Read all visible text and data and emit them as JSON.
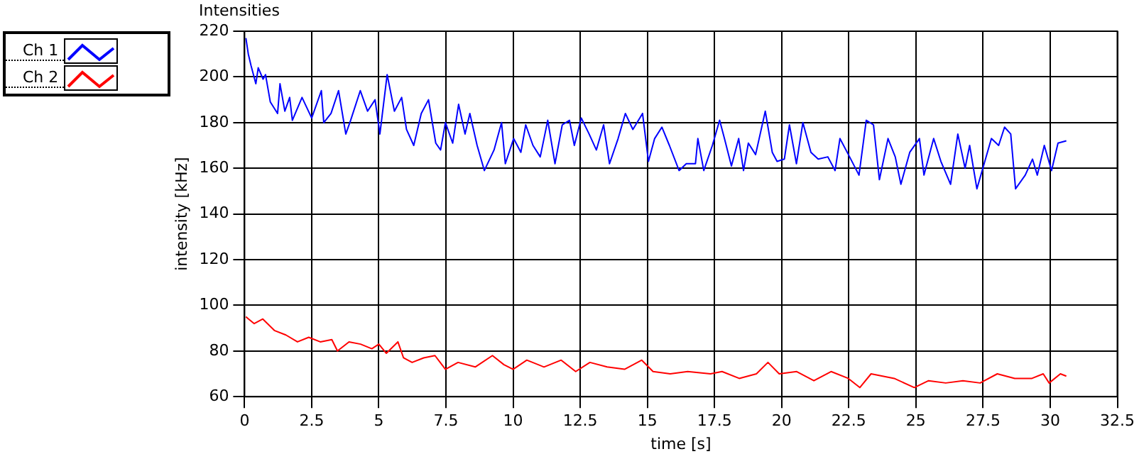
{
  "chart_data": {
    "type": "line",
    "title": "Intensities",
    "xlabel": "time [s]",
    "ylabel": "intensity [kHz]",
    "xlim": [
      0,
      32.5
    ],
    "xticks": [
      0,
      2.5,
      5,
      7.5,
      10,
      12.5,
      15,
      17.5,
      20,
      22.5,
      25,
      27.5,
      30,
      32.5
    ],
    "ylim": [
      60,
      220
    ],
    "yticks": [
      60,
      80,
      100,
      120,
      140,
      160,
      180,
      200,
      220
    ],
    "grid": true,
    "legend": "top left",
    "marker": "none",
    "line_style": "solid",
    "series": [
      {
        "name": "Ch 1",
        "color": "#0000ff",
        "x": [
          0.05,
          0.14,
          0.24,
          0.42,
          0.51,
          0.69,
          0.78,
          0.96,
          1.23,
          1.32,
          1.5,
          1.68,
          1.78,
          2.14,
          2.5,
          2.86,
          2.95,
          3.22,
          3.5,
          3.77,
          3.95,
          4.31,
          4.58,
          4.86,
          5.04,
          5.31,
          5.58,
          5.85,
          6.03,
          6.3,
          6.58,
          6.85,
          7.12,
          7.3,
          7.48,
          7.75,
          7.97,
          8.21,
          8.39,
          8.66,
          8.93,
          9.29,
          9.57,
          9.71,
          10.02,
          10.29,
          10.47,
          10.74,
          11.01,
          11.29,
          11.56,
          11.83,
          12.1,
          12.28,
          12.54,
          12.83,
          13.1,
          13.37,
          13.59,
          13.91,
          14.18,
          14.46,
          14.82,
          15.04,
          15.27,
          15.54,
          15.82,
          16.18,
          16.45,
          16.79,
          16.88,
          17.1,
          17.42,
          17.69,
          17.87,
          18.13,
          18.4,
          18.58,
          18.76,
          19.03,
          19.39,
          19.65,
          19.83,
          20.1,
          20.29,
          20.55,
          20.79,
          21.09,
          21.36,
          21.72,
          21.99,
          22.17,
          22.53,
          22.88,
          23.15,
          23.42,
          23.64,
          23.96,
          24.23,
          24.44,
          24.77,
          25.13,
          25.3,
          25.66,
          25.93,
          26.29,
          26.56,
          26.83,
          27.0,
          27.27,
          27.54,
          27.81,
          28.08,
          28.3,
          28.53,
          28.71,
          29.07,
          29.34,
          29.52,
          29.78,
          30.05,
          30.29,
          30.6
        ],
        "values": [
          217,
          210,
          205,
          197,
          204,
          199,
          201,
          189,
          184,
          197,
          185,
          191,
          181,
          191,
          182,
          194,
          180,
          184,
          194,
          175,
          181,
          194,
          185,
          190,
          175,
          201,
          185,
          191,
          177,
          170,
          184,
          190,
          171,
          168,
          180,
          171,
          188,
          175,
          184,
          170,
          159,
          168,
          180,
          162,
          173,
          167,
          179,
          170,
          165,
          181,
          162,
          179,
          181,
          170,
          182,
          175,
          168,
          179,
          162,
          173,
          184,
          177,
          184,
          163,
          173,
          178,
          170,
          159,
          162,
          162,
          173,
          159,
          170,
          181,
          173,
          161,
          173,
          159,
          171,
          166,
          185,
          167,
          163,
          164,
          179,
          162,
          180,
          167,
          164,
          165,
          159,
          173,
          165,
          157,
          181,
          179,
          155,
          173,
          165,
          153,
          167,
          173,
          157,
          173,
          163,
          153,
          175,
          160,
          170,
          151,
          162,
          173,
          170,
          178,
          175,
          151,
          157,
          164,
          157,
          170,
          159,
          171,
          172
        ]
      },
      {
        "name": "Ch 2",
        "color": "#ff0000",
        "x": [
          0.05,
          0.15,
          0.36,
          0.68,
          1.11,
          1.54,
          1.97,
          2.39,
          2.82,
          3.25,
          3.46,
          3.89,
          4.32,
          4.74,
          5.0,
          5.28,
          5.71,
          5.92,
          6.24,
          6.67,
          7.09,
          7.48,
          7.95,
          8.59,
          9.23,
          9.66,
          10.0,
          10.51,
          11.15,
          11.79,
          12.33,
          12.86,
          13.5,
          14.15,
          14.79,
          15.21,
          15.85,
          16.5,
          17.35,
          17.78,
          18.42,
          19.06,
          19.49,
          19.91,
          20.56,
          21.2,
          21.84,
          22.48,
          22.91,
          23.33,
          24.19,
          24.94,
          25.47,
          26.11,
          26.75,
          27.39,
          28.03,
          28.68,
          29.32,
          29.74,
          29.96,
          30.38,
          30.6
        ],
        "values": [
          95,
          94,
          92,
          94,
          89,
          87,
          84,
          86,
          84,
          85,
          80,
          84,
          83,
          81,
          83,
          79,
          84,
          77,
          75,
          77,
          78,
          72,
          75,
          73,
          78,
          74,
          72,
          76,
          73,
          76,
          71,
          75,
          73,
          72,
          76,
          71,
          70,
          71,
          70,
          71,
          68,
          70,
          75,
          70,
          71,
          67,
          71,
          68,
          64,
          70,
          68,
          64,
          67,
          66,
          67,
          66,
          70,
          68,
          68,
          70,
          66,
          70,
          69
        ]
      }
    ]
  }
}
